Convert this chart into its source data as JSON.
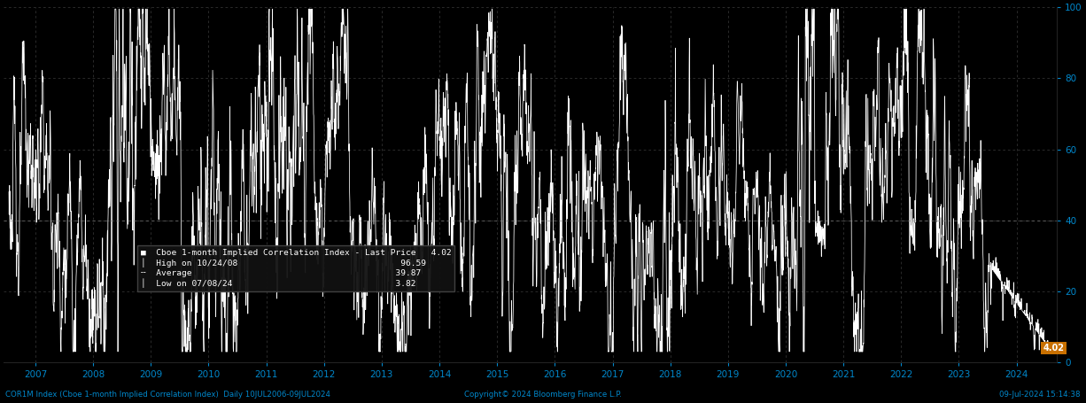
{
  "title": "COR1M Index (Cboe 1-month Implied Correlation Index)  Daily 10JUL2006-09JUL2024",
  "copyright": "Copyright© 2024 Bloomberg Finance L.P.",
  "date_label": "09-Jul-2024 15:14:38",
  "legend_line1": "Cboe 1-month Implied Correlation Index - Last Price",
  "legend_line2": "High on 10/24/08",
  "legend_line3": "Average",
  "legend_line4": "Low on 07/08/24",
  "last_price": 4.02,
  "high_value": 96.59,
  "avg_value": 39.87,
  "low_value": 3.82,
  "yticks": [
    0,
    20,
    40,
    60,
    80,
    100
  ],
  "xtick_years": [
    2007,
    2008,
    2009,
    2010,
    2011,
    2012,
    2013,
    2014,
    2015,
    2016,
    2017,
    2018,
    2019,
    2020,
    2021,
    2022,
    2023,
    2024
  ],
  "ylim": [
    0,
    100
  ],
  "xlim_start": 2006.45,
  "xlim_end": 2024.7,
  "background_color": "#000000",
  "plot_bg_color": "#000000",
  "line_color": "#ffffff",
  "grid_color": "#3a3a3a",
  "annotation_color": "#0088cc",
  "last_price_box_color": "#c87000",
  "avg_line_color": "#808080",
  "legend_bg_color": "#111111",
  "legend_edge_color": "#444444"
}
